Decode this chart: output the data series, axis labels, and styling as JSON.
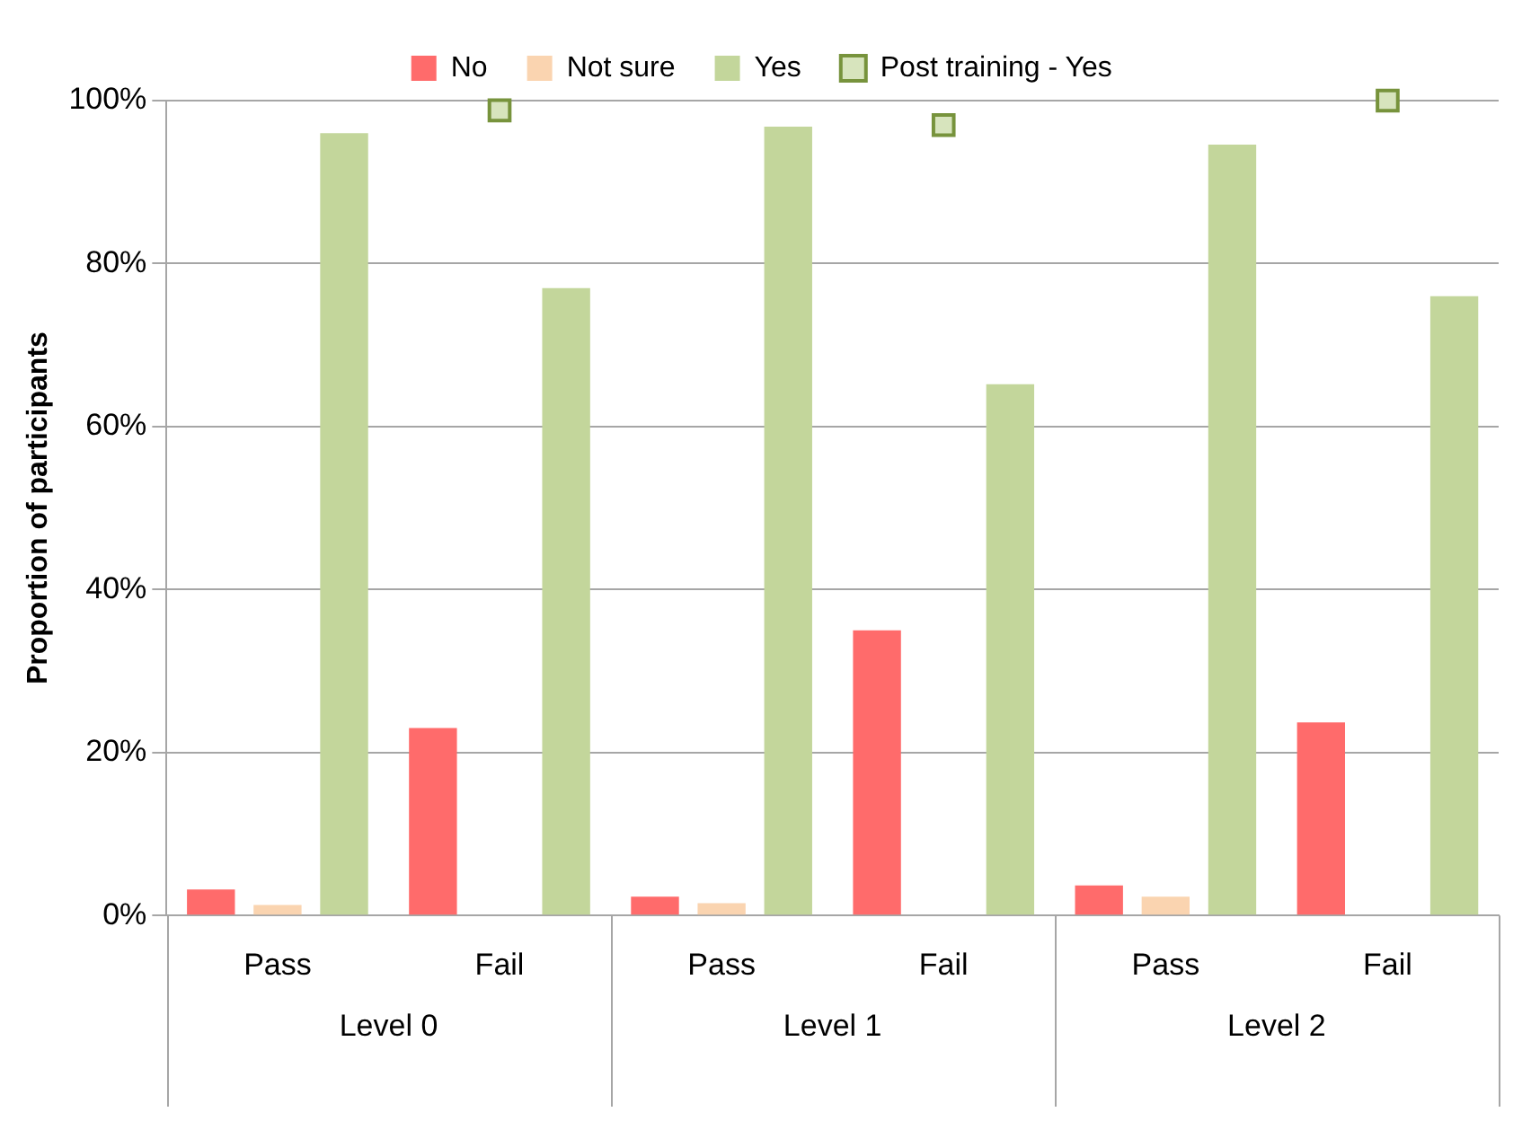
{
  "chart_data": {
    "type": "bar",
    "ylabel": "Proportion of participants",
    "categories": [
      "Pass",
      "Fail",
      "Pass",
      "Fail",
      "Pass",
      "Fail"
    ],
    "series": [
      {
        "name": "No",
        "color": "#ff6b6b",
        "values": [
          3.2,
          23,
          2.3,
          35,
          3.7,
          23.7
        ]
      },
      {
        "name": "Not sure",
        "color": "#fad4b0",
        "values": [
          1.3,
          0,
          1.5,
          0,
          2.3,
          0
        ]
      },
      {
        "name": "Yes",
        "color": "#c3d69b",
        "values": [
          96,
          77,
          96.8,
          65.2,
          94.6,
          76
        ]
      },
      {
        "name": "Post training - Yes",
        "type": "scatter",
        "color": "#d7e4bd",
        "values": [
          null,
          98.8,
          null,
          97,
          null,
          100
        ]
      }
    ],
    "marker": "square",
    "ylim": [
      0,
      100
    ],
    "yticks": [
      {
        "value": 0,
        "label": "0%"
      },
      {
        "value": 20,
        "label": "20%"
      },
      {
        "value": 40,
        "label": "40%"
      },
      {
        "value": 60,
        "label": "60%"
      },
      {
        "value": 80,
        "label": "80%"
      },
      {
        "value": 100,
        "label": "100%"
      }
    ],
    "grid": "y",
    "legend": "top",
    "annotations": [
      "Level 0",
      "Level 1",
      "Level 2"
    ]
  }
}
